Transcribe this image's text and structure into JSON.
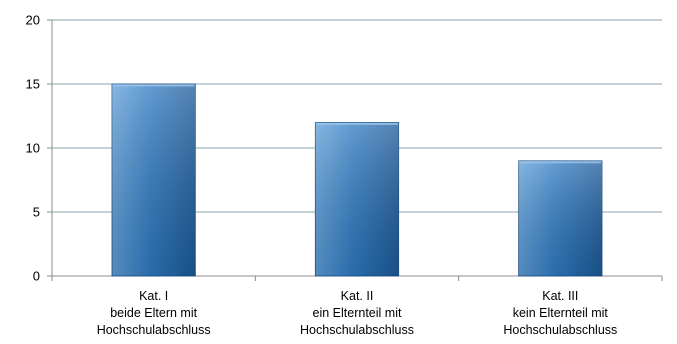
{
  "chart_data": {
    "type": "bar",
    "categories": [
      [
        "Kat. I",
        "beide Eltern mit",
        "Hochschulabschluss"
      ],
      [
        "Kat. II",
        "ein Elternteil mit",
        "Hochschulabschluss"
      ],
      [
        "Kat. III",
        "kein Elternteil mit",
        "Hochschulabschluss"
      ]
    ],
    "values": [
      15,
      12,
      9
    ],
    "ylim": [
      0,
      20
    ],
    "yticks": [
      0,
      5,
      10,
      15,
      20
    ],
    "yticks_labels": [
      "0",
      "5",
      "10",
      "15",
      "20"
    ],
    "grid": true,
    "legend": "none",
    "title": "",
    "xlabel": "",
    "ylabel": "",
    "colors": {
      "bar_top": "#5f9ed8",
      "bar_mid": "#2f7bc3",
      "bar_bottom": "#1c5a98",
      "bar_edge": "#1b4f86",
      "grid": "#8aa6b0",
      "axis": "#8c8c8c"
    }
  }
}
